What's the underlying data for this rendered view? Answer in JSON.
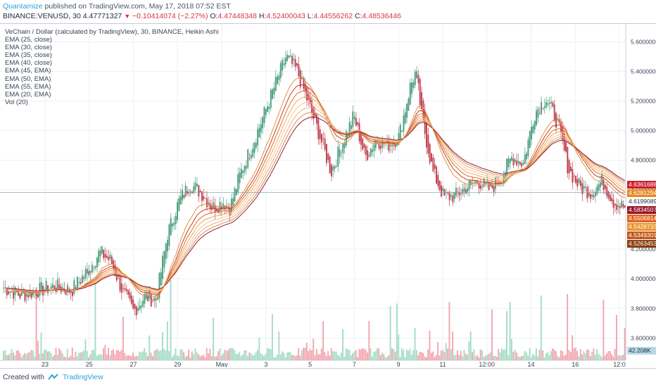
{
  "header": {
    "publisher": "Quantamize",
    "published_text": "published on TradingView.com, May 17, 2018 07:52 EST",
    "symbol_line": "BINANCE:VENUSD, 30",
    "last": "4.47771327",
    "change": "−0.10414074 (−2.27%)",
    "o_label": "O:",
    "o": "4.47448348",
    "h_label": "H:",
    "h": "4.52400043",
    "l_label": "L:",
    "l": "4.44556262",
    "c_label": "C:",
    "c": "4.48536446"
  },
  "legend": {
    "title": "VeChain / Dollar (calculated by TradingView), 30, BINANCE, Heikin Ashi",
    "items": [
      "EMA (25, close)",
      "EMA (30, close)",
      "EMA (35, close)",
      "EMA (40, close)",
      "EMA (45, EMA)",
      "EMA (50, EMA)",
      "EMA (55, EMA)",
      "EMA (20, EMA)",
      "Vol (20)"
    ]
  },
  "footer": {
    "created_with": "Created with",
    "brand": "TradingView"
  },
  "colors": {
    "up": "#4a9e7e",
    "down": "#c0404f",
    "ema": [
      "#c43b2a",
      "#e0701a",
      "#f0a860",
      "#f5c79a",
      "#efae7e",
      "#d98b5a",
      "#8e1f35",
      "#e39242"
    ],
    "vol_up": "#a6dcc7",
    "vol_down": "#f2a7b0"
  },
  "chart_data": {
    "type": "candlestick",
    "symbol": "VENUSD",
    "interval": "30",
    "ylim": [
      3.45,
      5.72
    ],
    "x_ticks": [
      "23",
      "25",
      "27",
      "29",
      "May",
      "3",
      "5",
      "7",
      "9",
      "11",
      "12:00",
      "14",
      "16",
      "12:0"
    ],
    "y_ticks": [
      "5.60000000",
      "5.40000000",
      "5.20000000",
      "5.00000000",
      "4.80000000",
      "4.60000000",
      "4.40000000",
      "4.20000000",
      "4.00000000",
      "3.80000000",
      "3.60000000"
    ],
    "close_path": [
      [
        0,
        3.94
      ],
      [
        3,
        3.89
      ],
      [
        6,
        3.92
      ],
      [
        9,
        3.95
      ],
      [
        12,
        3.92
      ],
      [
        15,
        4.06
      ],
      [
        17,
        4.18
      ],
      [
        19,
        4.12
      ],
      [
        21,
        3.92
      ],
      [
        23,
        3.78
      ],
      [
        25,
        3.88
      ],
      [
        27,
        3.86
      ],
      [
        29,
        4.3
      ],
      [
        31,
        4.52
      ],
      [
        33,
        4.64
      ],
      [
        35,
        4.58
      ],
      [
        37,
        4.48
      ],
      [
        39,
        4.52
      ],
      [
        40,
        4.47
      ],
      [
        42,
        4.72
      ],
      [
        44,
        4.9
      ],
      [
        46,
        5.1
      ],
      [
        48,
        5.3
      ],
      [
        50,
        5.5
      ],
      [
        52,
        5.4
      ],
      [
        54,
        5.18
      ],
      [
        56,
        4.96
      ],
      [
        58,
        4.72
      ],
      [
        60,
        4.92
      ],
      [
        62,
        5.1
      ],
      [
        64,
        4.82
      ],
      [
        66,
        4.94
      ],
      [
        68,
        4.9
      ],
      [
        70,
        4.96
      ],
      [
        72,
        5.3
      ],
      [
        73,
        5.4
      ],
      [
        74,
        5.1
      ],
      [
        76,
        4.72
      ],
      [
        78,
        4.55
      ],
      [
        80,
        4.56
      ],
      [
        82,
        4.62
      ],
      [
        84,
        4.66
      ],
      [
        86,
        4.6
      ],
      [
        88,
        4.68
      ],
      [
        90,
        4.82
      ],
      [
        92,
        4.78
      ],
      [
        94,
        5.12
      ],
      [
        96,
        5.22
      ],
      [
        98,
        5.06
      ],
      [
        100,
        4.74
      ],
      [
        102,
        4.62
      ],
      [
        104,
        4.58
      ],
      [
        106,
        4.66
      ],
      [
        108,
        4.52
      ],
      [
        110,
        4.48
      ]
    ],
    "ema_last_values": [
      "4.63616888",
      "4.62812942",
      "4.61990895",
      "4.58345072",
      "4.55068142",
      "4.54287331",
      "4.53493013",
      "4.52634533"
    ],
    "volume_last": "42.208K"
  }
}
